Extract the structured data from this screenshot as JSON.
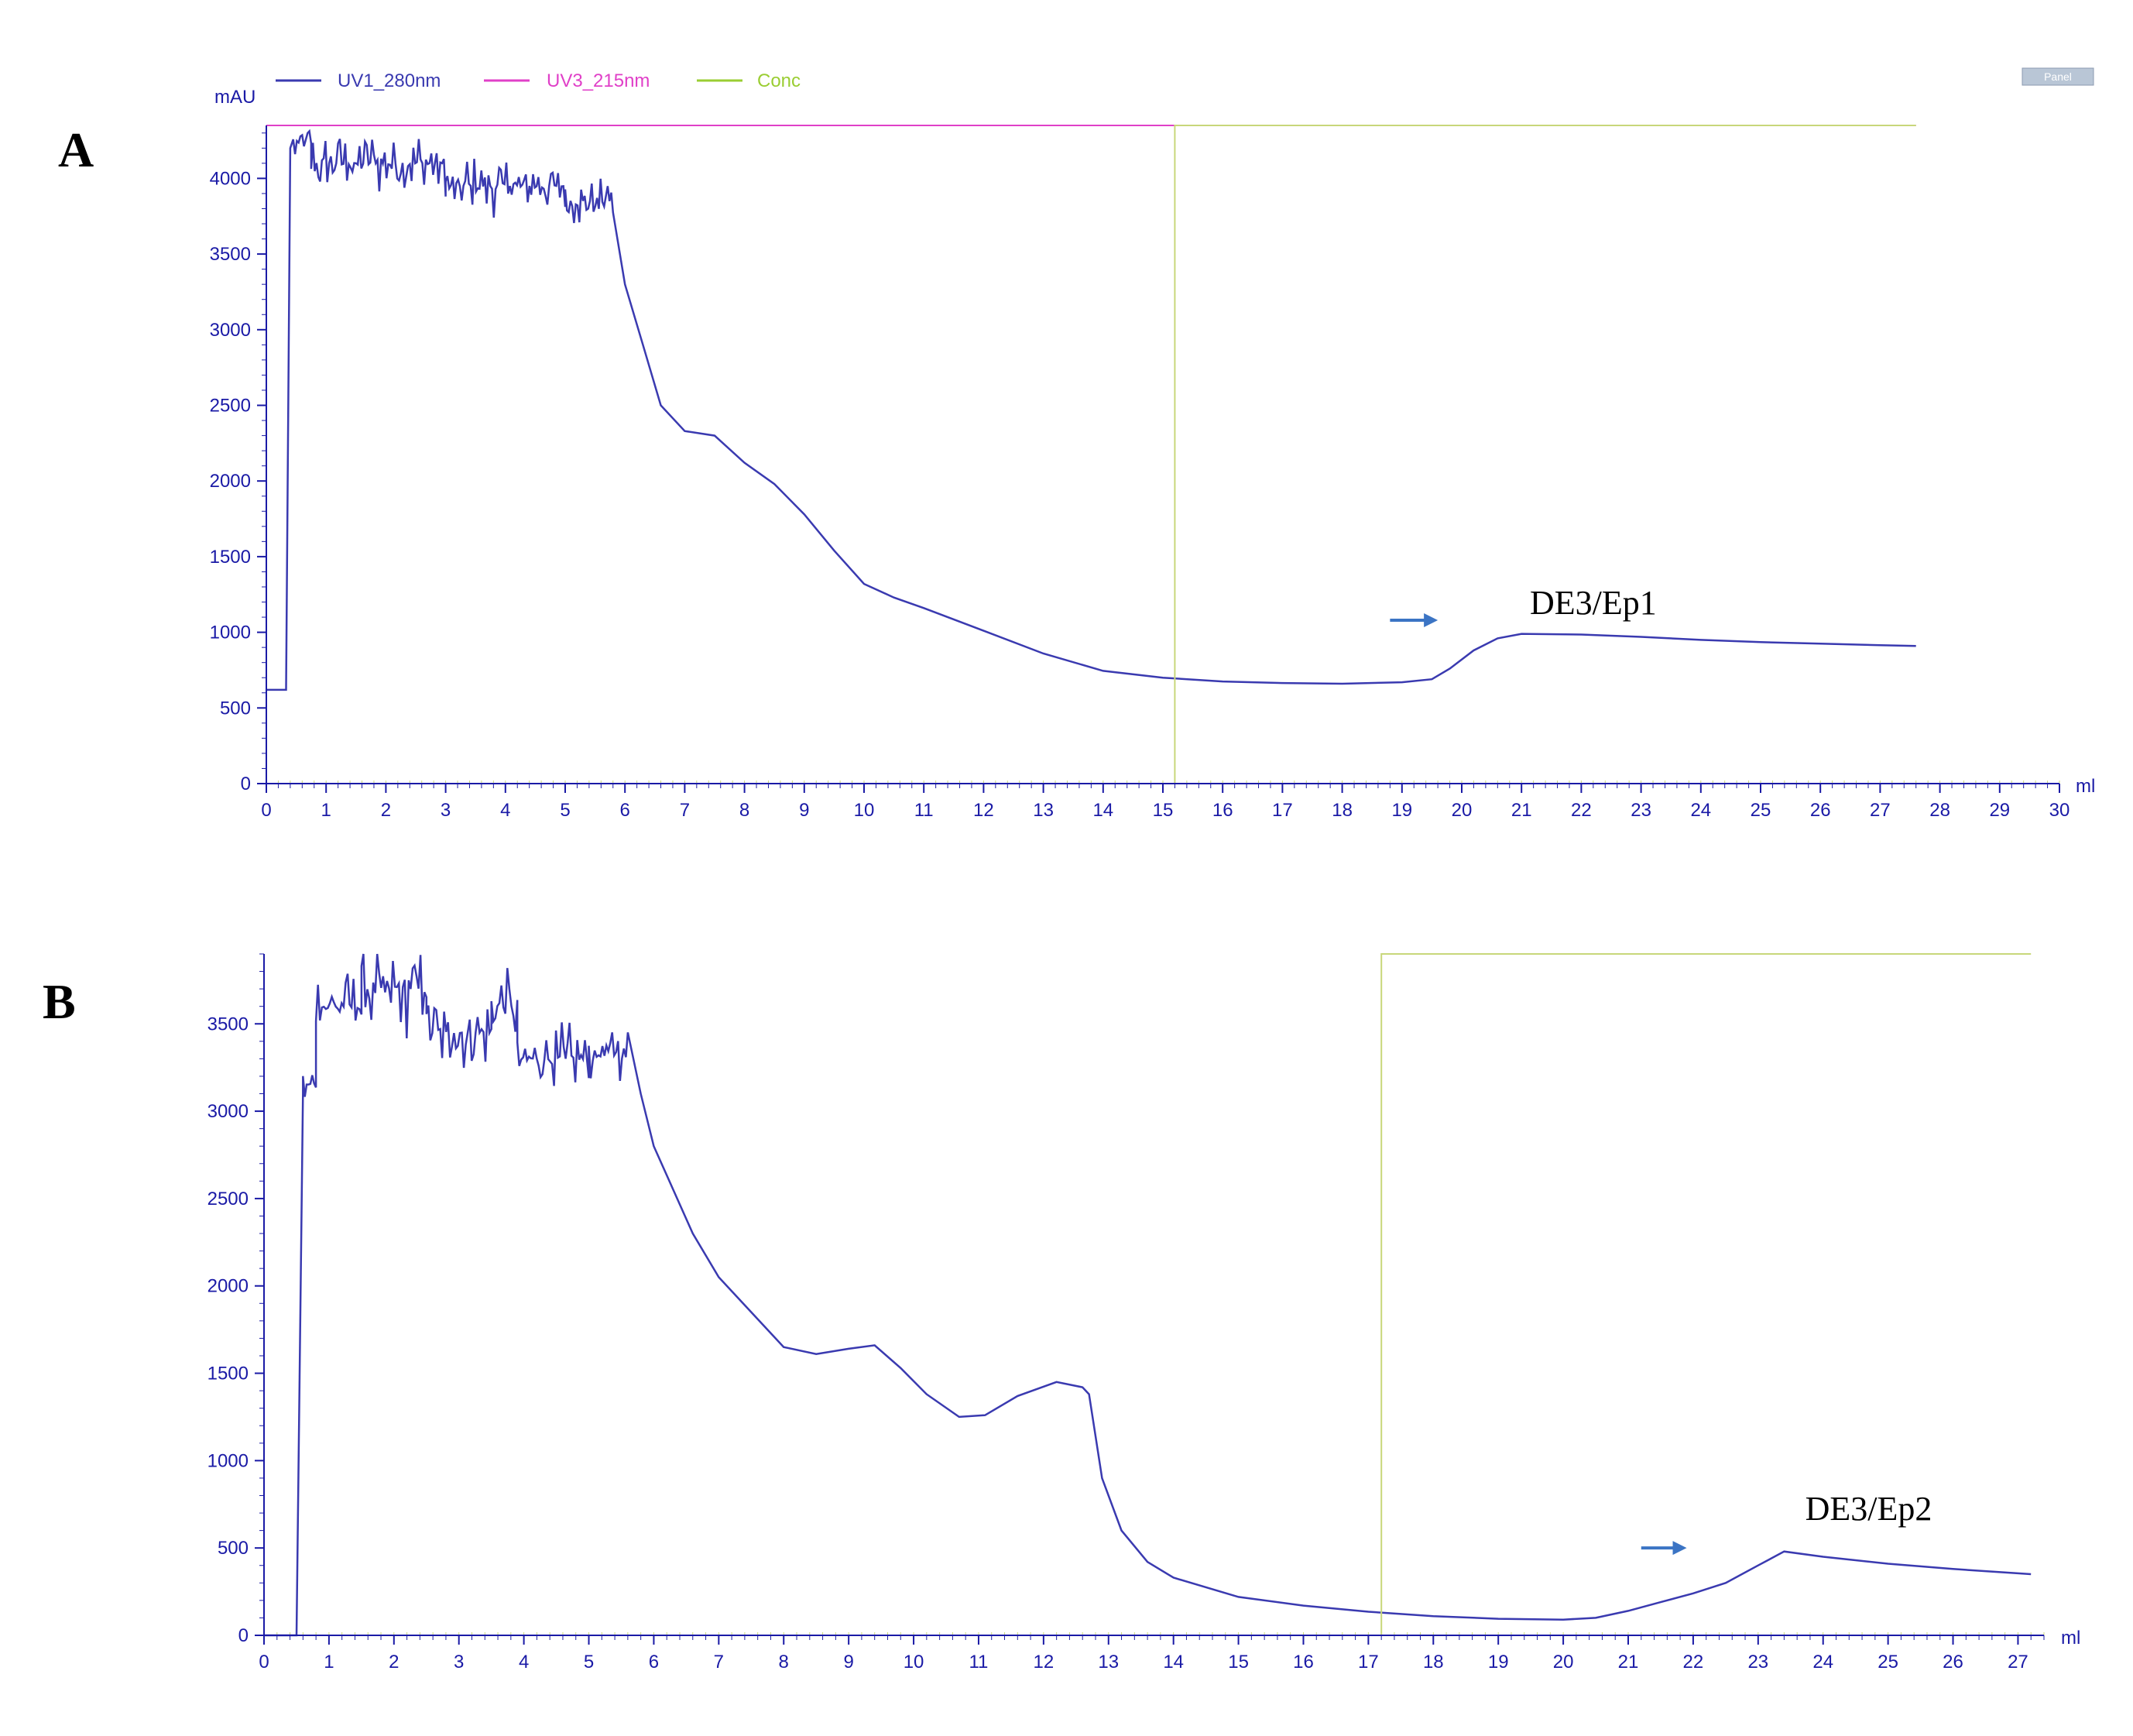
{
  "legend": [
    {
      "label": "UV1_280nm",
      "color": "#3a3ab0"
    },
    {
      "label": "UV3_215nm",
      "color": "#e040c8"
    },
    {
      "label": "Conc",
      "color": "#9acd32"
    }
  ],
  "corner_button": "Panel",
  "colors": {
    "axis": "#1a1aa6",
    "uv": "#3a3ab0",
    "uv3": "#e040c8",
    "conc": "#c8d77a",
    "arrow": "#3b74c4"
  },
  "chart_data": [
    {
      "type": "line",
      "panel_label": "A",
      "ylabel": "mAU",
      "xlabel": "ml",
      "xlim": [
        0,
        30
      ],
      "ylim": [
        0,
        4350
      ],
      "xticks": [
        0,
        1,
        2,
        3,
        4,
        5,
        6,
        7,
        8,
        9,
        10,
        11,
        12,
        13,
        14,
        15,
        16,
        17,
        18,
        19,
        20,
        21,
        22,
        23,
        24,
        25,
        26,
        27,
        28,
        29,
        30
      ],
      "yticks": [
        0,
        500,
        1000,
        1500,
        2000,
        2500,
        3000,
        3500,
        4000
      ],
      "annotation": {
        "text": "DE3/Ep1",
        "x": 22.2,
        "y": 1120
      },
      "arrow": {
        "x_start": 18.8,
        "x_end": 19.6,
        "y": 1080
      },
      "series": [
        {
          "name": "UV1_280nm",
          "noise": [
            [
              0.45,
              0.75,
              4230,
              180
            ],
            [
              0.75,
              3.0,
              4100,
              230
            ],
            [
              3.0,
              5.0,
              3950,
              220
            ],
            [
              5.0,
              5.8,
              3850,
              200
            ]
          ],
          "points": [
            [
              0,
              620
            ],
            [
              0.33,
              620
            ],
            [
              0.4,
              4200
            ],
            [
              5.8,
              3700
            ],
            [
              6.0,
              3300
            ],
            [
              6.3,
              2900
            ],
            [
              6.6,
              2500
            ],
            [
              7.0,
              2330
            ],
            [
              7.5,
              2300
            ],
            [
              8.0,
              2120
            ],
            [
              8.5,
              1980
            ],
            [
              9.0,
              1780
            ],
            [
              9.5,
              1540
            ],
            [
              10.0,
              1320
            ],
            [
              10.5,
              1230
            ],
            [
              11.0,
              1160
            ],
            [
              12.0,
              1010
            ],
            [
              13.0,
              860
            ],
            [
              14.0,
              745
            ],
            [
              15.0,
              700
            ],
            [
              16.0,
              675
            ],
            [
              17.0,
              665
            ],
            [
              18.0,
              660
            ],
            [
              19.0,
              670
            ],
            [
              19.5,
              690
            ],
            [
              19.8,
              760
            ],
            [
              20.2,
              880
            ],
            [
              20.6,
              960
            ],
            [
              21.0,
              990
            ],
            [
              22.0,
              985
            ],
            [
              23.0,
              970
            ],
            [
              24.0,
              950
            ],
            [
              25.0,
              935
            ],
            [
              26.0,
              925
            ],
            [
              27.0,
              915
            ],
            [
              27.6,
              910
            ]
          ]
        },
        {
          "name": "UV3_215nm",
          "points": [
            [
              0,
              4350
            ],
            [
              27.6,
              4350
            ]
          ]
        },
        {
          "name": "Conc",
          "points": [
            [
              0,
              0
            ],
            [
              15.2,
              0
            ],
            [
              15.2,
              4350
            ],
            [
              27.6,
              4350
            ]
          ]
        }
      ]
    },
    {
      "type": "line",
      "panel_label": "B",
      "ylabel": "",
      "xlabel": "ml",
      "xlim": [
        0,
        27.4
      ],
      "ylim": [
        0,
        3900
      ],
      "xticks": [
        0,
        1,
        2,
        3,
        4,
        5,
        6,
        7,
        8,
        9,
        10,
        11,
        12,
        13,
        14,
        15,
        16,
        17,
        18,
        19,
        20,
        21,
        22,
        23,
        24,
        25,
        26,
        27
      ],
      "yticks": [
        0,
        500,
        1000,
        1500,
        2000,
        2500,
        3000,
        3500
      ],
      "annotation": {
        "text": "DE3/Ep2",
        "x": 24.7,
        "y": 660
      },
      "arrow": {
        "x_start": 21.2,
        "x_end": 21.9,
        "y": 500
      },
      "series": [
        {
          "name": "UV1_280nm",
          "noise": [
            [
              0.6,
              0.8,
              3150,
              160
            ],
            [
              0.8,
              1.5,
              3600,
              230
            ],
            [
              1.5,
              2.5,
              3700,
              300
            ],
            [
              2.5,
              3.5,
              3450,
              260
            ],
            [
              3.5,
              3.9,
              3600,
              240
            ],
            [
              3.9,
              5.0,
              3300,
              220
            ],
            [
              5.0,
              5.6,
              3340,
              200
            ]
          ],
          "points": [
            [
              0,
              0
            ],
            [
              0.5,
              0
            ],
            [
              0.6,
              3100
            ],
            [
              5.6,
              3300
            ],
            [
              5.8,
              3100
            ],
            [
              6.0,
              2800
            ],
            [
              6.3,
              2550
            ],
            [
              6.6,
              2300
            ],
            [
              7.0,
              2050
            ],
            [
              7.5,
              1850
            ],
            [
              8.0,
              1650
            ],
            [
              8.5,
              1610
            ],
            [
              9.0,
              1640
            ],
            [
              9.4,
              1660
            ],
            [
              9.8,
              1530
            ],
            [
              10.2,
              1380
            ],
            [
              10.7,
              1250
            ],
            [
              11.1,
              1260
            ],
            [
              11.6,
              1370
            ],
            [
              12.2,
              1450
            ],
            [
              12.6,
              1420
            ],
            [
              12.7,
              1380
            ],
            [
              12.9,
              900
            ],
            [
              13.2,
              600
            ],
            [
              13.6,
              420
            ],
            [
              14.0,
              330
            ],
            [
              15.0,
              220
            ],
            [
              16.0,
              170
            ],
            [
              17.0,
              135
            ],
            [
              18.0,
              110
            ],
            [
              19.0,
              95
            ],
            [
              20.0,
              90
            ],
            [
              20.5,
              100
            ],
            [
              21.0,
              140
            ],
            [
              21.5,
              190
            ],
            [
              22.0,
              240
            ],
            [
              22.5,
              300
            ],
            [
              23.0,
              400
            ],
            [
              23.4,
              480
            ],
            [
              24.0,
              450
            ],
            [
              25.0,
              410
            ],
            [
              26.0,
              380
            ],
            [
              27.0,
              355
            ],
            [
              27.2,
              350
            ]
          ]
        },
        {
          "name": "Conc",
          "points": [
            [
              0,
              0
            ],
            [
              17.2,
              0
            ],
            [
              17.2,
              3900
            ],
            [
              27.2,
              3900
            ]
          ]
        }
      ]
    }
  ]
}
